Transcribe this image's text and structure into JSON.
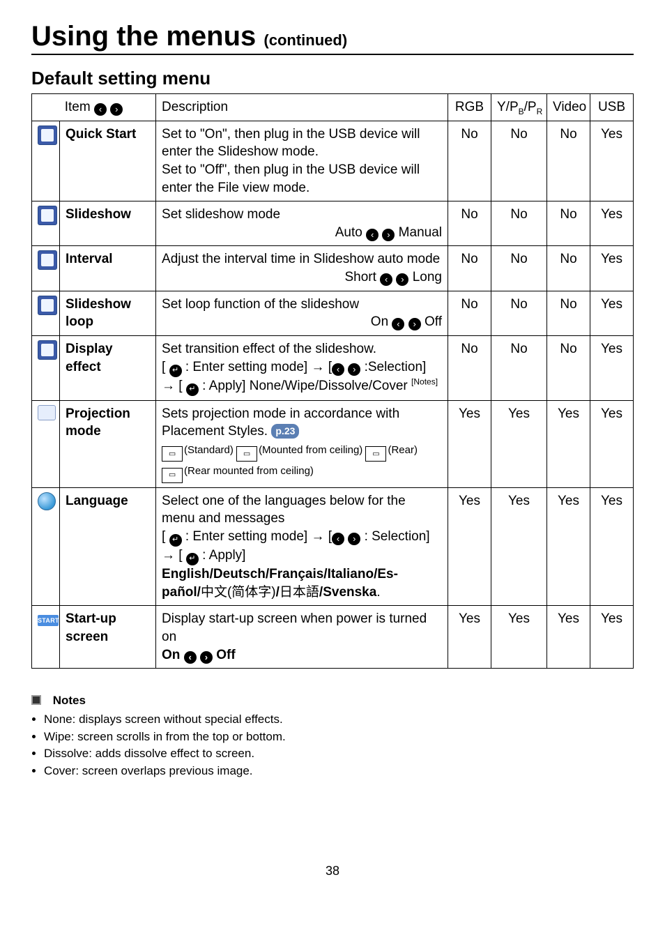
{
  "page_title_main": "Using the menus",
  "page_title_cont": "(continued)",
  "section_title": "Default setting menu",
  "columns": {
    "item": "Item",
    "desc": "Description",
    "rgb": "RGB",
    "ypbpr_html": "Y/P<sub>B</sub>/P<sub>R</sub>",
    "video": "Video",
    "usb": "USB"
  },
  "arrow_left": "‹",
  "arrow_right": "›",
  "enter_glyph": "↵",
  "rows": [
    {
      "label": "Quick Start",
      "desc": "Set to \"On\", then plug in the USB device will enter the Slideshow mode.\nSet to \"Off\", then plug in the USB device will enter the File view mode.",
      "rgb": "No",
      "yp": "No",
      "video": "No",
      "usb": "Yes"
    },
    {
      "label": "Slideshow",
      "desc_main": "Set slideshow mode",
      "toggle_left": "Auto",
      "toggle_right": "Manual",
      "rgb": "No",
      "yp": "No",
      "video": "No",
      "usb": "Yes"
    },
    {
      "label": "Interval",
      "desc_main": "Adjust the interval time in Slideshow auto mode",
      "toggle_left": "Short",
      "toggle_right": "Long",
      "rgb": "No",
      "yp": "No",
      "video": "No",
      "usb": "Yes"
    },
    {
      "label": "Slideshow loop",
      "desc_main": "Set loop function of the slideshow",
      "toggle_left": "On",
      "toggle_right": "Off",
      "rgb": "No",
      "yp": "No",
      "video": "No",
      "usb": "Yes"
    },
    {
      "label": "Display effect",
      "desc_line1": "Set transition effect of the slideshow.",
      "desc_line2_a": "[ ",
      "desc_line2_b": " : Enter setting mode] → [",
      "desc_line2_c": " :Selection] → [ ",
      "desc_line2_d": " : Apply] None/Wipe/Dissolve/Cover ",
      "notes_sup": "[Notes]",
      "rgb": "No",
      "yp": "No",
      "video": "No",
      "usb": "Yes"
    },
    {
      "label": "Projection mode",
      "desc_line1": "Sets projection mode in accordance with Placement Styles.",
      "badge": "p.23",
      "pm_standard": "(Standard)",
      "pm_mount_ceil": "(Mounted from ceiling)",
      "pm_rear": "(Rear)",
      "pm_rear_ceil": "(Rear mounted from ceiling)",
      "rgb": "Yes",
      "yp": "Yes",
      "video": "Yes",
      "usb": "Yes"
    },
    {
      "label": "Language",
      "lang_a": "Select one of the languages below for the menu and messages",
      "lang_b1": "[ ",
      "lang_b2": " : Enter setting mode] → [",
      "lang_b3": " : Selection] → [ ",
      "lang_b4": " : Apply]",
      "lang_c": "English/Deutsch/Français/Italiano/Español/中文(简体字)/日本語/Svenska",
      "rgb": "Yes",
      "yp": "Yes",
      "video": "Yes",
      "usb": "Yes"
    },
    {
      "label": "Start-up screen",
      "su_a": "Display start-up screen when power is turned on",
      "su_on": "On",
      "su_off": "Off",
      "rgb": "Yes",
      "yp": "Yes",
      "video": "Yes",
      "usb": "Yes"
    }
  ],
  "notes_title": "Notes",
  "notes": [
    "None: displays screen without special effects.",
    "Wipe: screen scrolls in from the top or bottom.",
    "Dissolve: adds dissolve effect to screen.",
    "Cover: screen overlaps previous image."
  ],
  "page_number": "38"
}
